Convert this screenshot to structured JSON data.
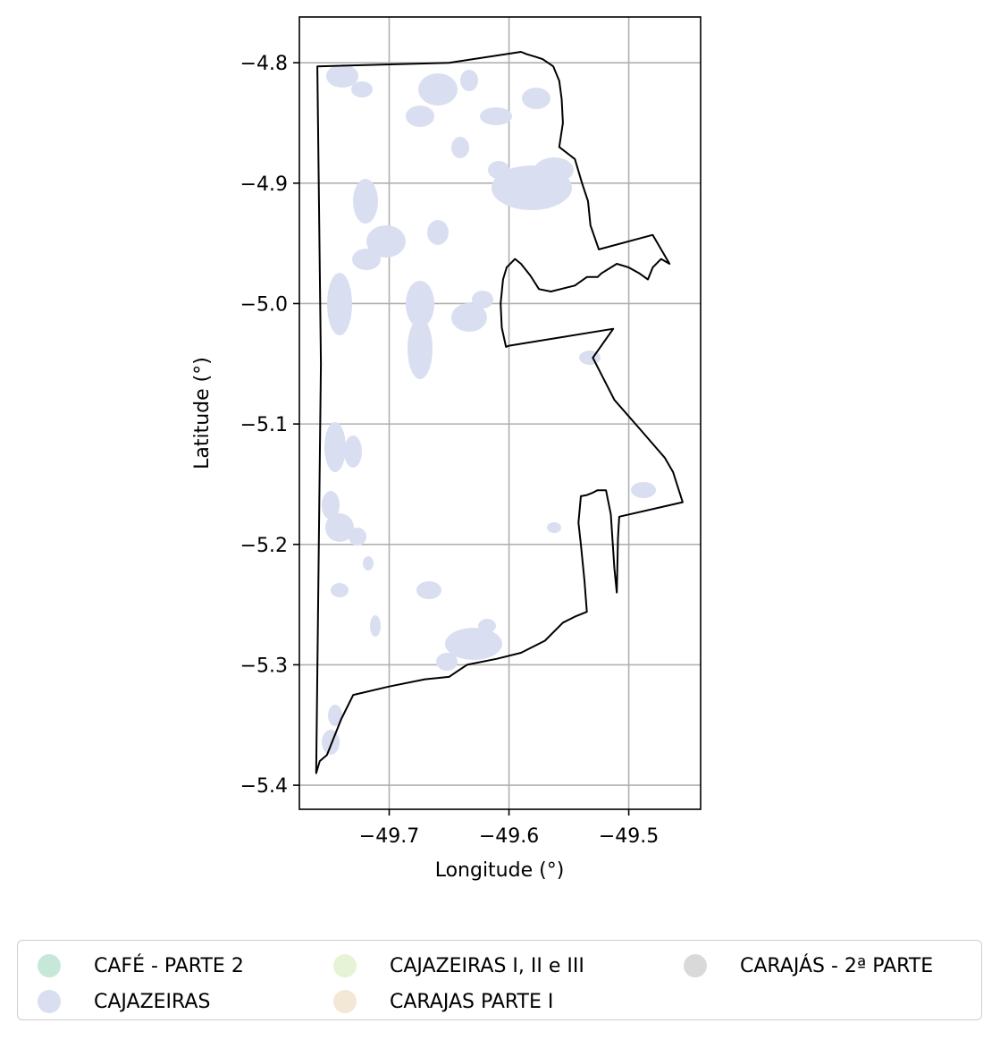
{
  "chart_data": {
    "type": "map",
    "xlabel": "Longitude (°)",
    "ylabel": "Latitude (°)",
    "xlim": [
      -49.775,
      -49.44
    ],
    "ylim": [
      -5.42,
      -4.762
    ],
    "xticks": [
      -49.7,
      -49.6,
      -49.5
    ],
    "yticks": [
      -4.8,
      -4.9,
      -5.0,
      -5.1,
      -5.2,
      -5.3,
      -5.4
    ],
    "xtick_labels": [
      "−49.7",
      "−49.6",
      "−49.5"
    ],
    "ytick_labels": [
      "−4.8",
      "−4.9",
      "−5.0",
      "−5.1",
      "−5.2",
      "−5.3",
      "−5.4"
    ],
    "grid": true,
    "boundary": [
      [
        -49.76,
        -4.803
      ],
      [
        -49.65,
        -4.8
      ],
      [
        -49.59,
        -4.791
      ],
      [
        -49.585,
        -4.793
      ],
      [
        -49.578,
        -4.795
      ],
      [
        -49.572,
        -4.797
      ],
      [
        -49.563,
        -4.803
      ],
      [
        -49.558,
        -4.815
      ],
      [
        -49.556,
        -4.83
      ],
      [
        -49.555,
        -4.85
      ],
      [
        -49.558,
        -4.87
      ],
      [
        -49.545,
        -4.88
      ],
      [
        -49.539,
        -4.9
      ],
      [
        -49.534,
        -4.915
      ],
      [
        -49.532,
        -4.935
      ],
      [
        -49.525,
        -4.955
      ],
      [
        -49.48,
        -4.943
      ],
      [
        -49.466,
        -4.967
      ],
      [
        -49.473,
        -4.963
      ],
      [
        -49.48,
        -4.97
      ],
      [
        -49.484,
        -4.98
      ],
      [
        -49.491,
        -4.975
      ],
      [
        -49.5,
        -4.97
      ],
      [
        -49.51,
        -4.967
      ],
      [
        -49.523,
        -4.975
      ],
      [
        -49.526,
        -4.978
      ],
      [
        -49.535,
        -4.978
      ],
      [
        -49.545,
        -4.985
      ],
      [
        -49.565,
        -4.99
      ],
      [
        -49.575,
        -4.988
      ],
      [
        -49.582,
        -4.977
      ],
      [
        -49.59,
        -4.967
      ],
      [
        -49.595,
        -4.963
      ],
      [
        -49.602,
        -4.97
      ],
      [
        -49.605,
        -4.98
      ],
      [
        -49.607,
        -5.0
      ],
      [
        -49.606,
        -5.02
      ],
      [
        -49.6025,
        -5.036
      ],
      [
        -49.6,
        -5.035
      ],
      [
        -49.513,
        -5.021
      ],
      [
        -49.53,
        -5.045
      ],
      [
        -49.512,
        -5.08
      ],
      [
        -49.49,
        -5.105
      ],
      [
        -49.47,
        -5.128
      ],
      [
        -49.463,
        -5.14
      ],
      [
        -49.455,
        -5.165
      ],
      [
        -49.508,
        -5.177
      ],
      [
        -49.509,
        -5.195
      ],
      [
        -49.51,
        -5.24
      ],
      [
        -49.512,
        -5.22
      ],
      [
        -49.515,
        -5.175
      ],
      [
        -49.519,
        -5.155
      ],
      [
        -49.526,
        -5.155
      ],
      [
        -49.53,
        -5.157
      ],
      [
        -49.535,
        -5.159
      ],
      [
        -49.54,
        -5.16
      ],
      [
        -49.542,
        -5.182
      ],
      [
        -49.54,
        -5.2
      ],
      [
        -49.537,
        -5.23
      ],
      [
        -49.535,
        -5.256
      ],
      [
        -49.545,
        -5.26
      ],
      [
        -49.555,
        -5.265
      ],
      [
        -49.57,
        -5.28
      ],
      [
        -49.59,
        -5.29
      ],
      [
        -49.61,
        -5.295
      ],
      [
        -49.635,
        -5.3
      ],
      [
        -49.65,
        -5.31
      ],
      [
        -49.67,
        -5.312
      ],
      [
        -49.7,
        -5.318
      ],
      [
        -49.73,
        -5.325
      ],
      [
        -49.74,
        -5.345
      ],
      [
        -49.748,
        -5.365
      ],
      [
        -49.752,
        -5.375
      ],
      [
        -49.758,
        -5.38
      ],
      [
        -49.761,
        -5.39
      ],
      [
        -49.757,
        -5.05
      ],
      [
        -49.76,
        -4.803
      ]
    ],
    "series": [
      {
        "name": "CAFÉ - PARTE 2",
        "color": "#c7e8d8"
      },
      {
        "name": "CAJAZEIRAS",
        "color": "#d9dff0"
      },
      {
        "name": "CAJAZEIRAS I, II e III",
        "color": "#e6f3d6"
      },
      {
        "name": "CARAJAS PARTE I",
        "color": "#f3e7d6"
      },
      {
        "name": "CARAJÁS - 2ª PARTE",
        "color": "#d9d9d9"
      }
    ],
    "legend_placement": "bottom"
  }
}
